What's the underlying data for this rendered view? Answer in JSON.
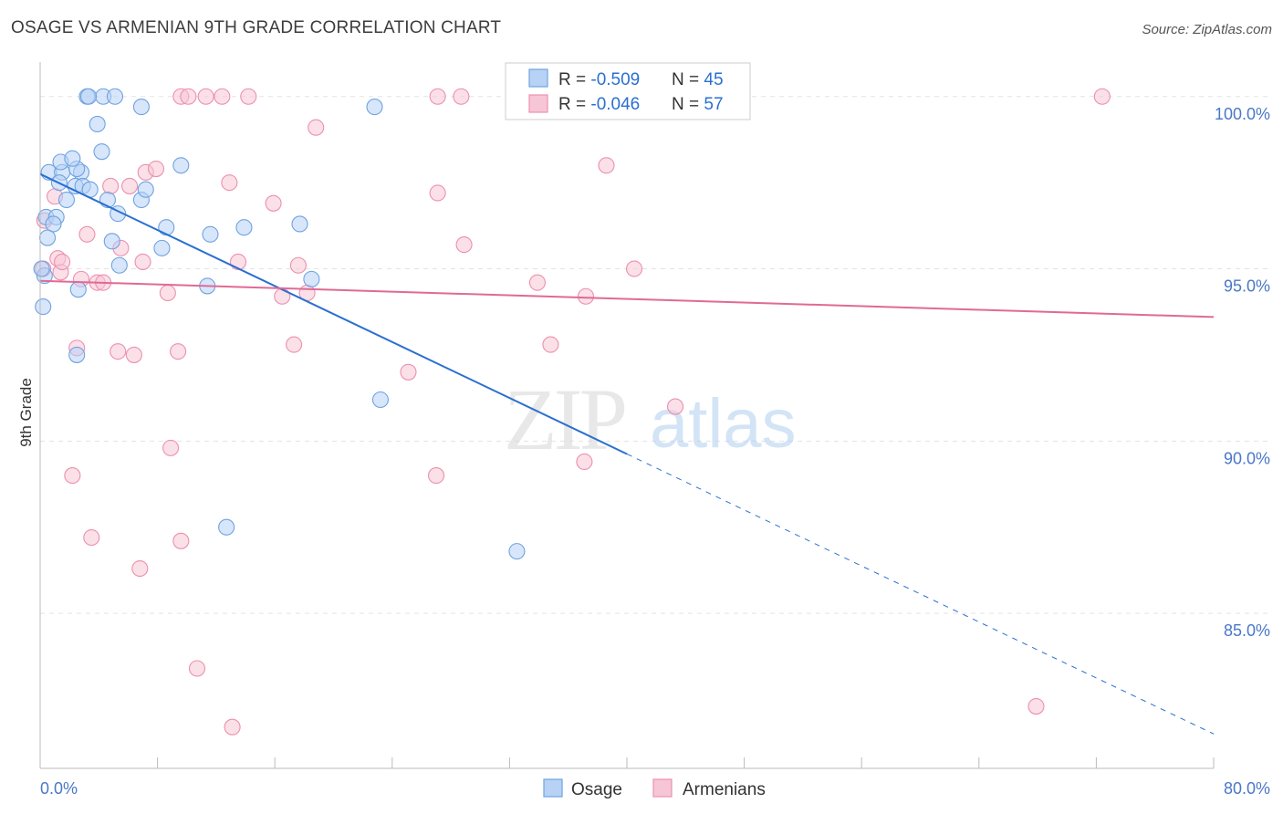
{
  "header": {
    "title": "OSAGE VS ARMENIAN 9TH GRADE CORRELATION CHART",
    "source": "Source: ZipAtlas.com"
  },
  "watermark": {
    "zip": "ZIP",
    "atlas": "atlas"
  },
  "colors": {
    "osage": "#6fa3e0",
    "osage_fill": "#b7d2f5",
    "osage_line": "#2a6fd1",
    "armenian": "#ec8fb0",
    "armenian_fill": "#f7c6d6",
    "armenian_line": "#e06a94",
    "tick_text": "#4a78c8",
    "grid": "#e3e3e3"
  },
  "stats": [
    {
      "r_label": "R = ",
      "r_value": "-0.509",
      "n_label": "N = ",
      "n_value": "45"
    },
    {
      "r_label": "R = ",
      "r_value": "-0.046",
      "n_label": "N = ",
      "n_value": "57"
    }
  ],
  "chart_data": {
    "type": "scatter",
    "title": "OSAGE VS ARMENIAN 9TH GRADE CORRELATION CHART",
    "xlabel": "",
    "ylabel": "9th Grade",
    "xlim": [
      0,
      80
    ],
    "ylim": [
      80.5,
      101
    ],
    "x_tick_labels": [
      "0.0%",
      "80.0%"
    ],
    "y_ticks": [
      100,
      95,
      90,
      85
    ],
    "y_tick_labels": [
      "100.0%",
      "95.0%",
      "90.0%",
      "85.0%"
    ],
    "x_minor_ticks": [
      0,
      8,
      16,
      24,
      32,
      40,
      48,
      56,
      64,
      72,
      80
    ],
    "grid": true,
    "legend_position": "bottom-center",
    "series": [
      {
        "name": "Osage",
        "trend": {
          "x0": 0,
          "y0": 97.75,
          "x_solid_end": 40,
          "x1": 80,
          "y1": 81.5
        },
        "points": [
          [
            0.6,
            97.8
          ],
          [
            1.5,
            97.8
          ],
          [
            2.8,
            97.8
          ],
          [
            2.5,
            97.9
          ],
          [
            1.4,
            98.1
          ],
          [
            2.2,
            98.2
          ],
          [
            1.3,
            97.5
          ],
          [
            2.4,
            97.4
          ],
          [
            2.9,
            97.4
          ],
          [
            3.4,
            97.3
          ],
          [
            4.6,
            97.0
          ],
          [
            1.8,
            97.0
          ],
          [
            6.9,
            97.0
          ],
          [
            7.2,
            97.3
          ],
          [
            0.4,
            96.5
          ],
          [
            1.1,
            96.5
          ],
          [
            0.9,
            96.3
          ],
          [
            5.3,
            96.6
          ],
          [
            8.6,
            96.2
          ],
          [
            11.6,
            96.0
          ],
          [
            13.9,
            96.2
          ],
          [
            17.7,
            96.3
          ],
          [
            0.5,
            95.9
          ],
          [
            4.9,
            95.8
          ],
          [
            8.3,
            95.6
          ],
          [
            5.4,
            95.1
          ],
          [
            18.5,
            94.7
          ],
          [
            2.6,
            94.4
          ],
          [
            11.4,
            94.5
          ],
          [
            0.2,
            93.9
          ],
          [
            2.5,
            92.5
          ],
          [
            23.2,
            91.2
          ],
          [
            12.7,
            87.5
          ],
          [
            32.5,
            86.8
          ],
          [
            3.2,
            100.0
          ],
          [
            4.3,
            100.0
          ],
          [
            5.1,
            100.0
          ],
          [
            3.3,
            100.0
          ],
          [
            6.9,
            99.7
          ],
          [
            22.8,
            99.7
          ],
          [
            3.9,
            99.2
          ],
          [
            4.2,
            98.4
          ],
          [
            9.6,
            98.0
          ],
          [
            0.3,
            94.8
          ],
          [
            0.1,
            95.0
          ]
        ]
      },
      {
        "name": "Armenians",
        "trend": {
          "x0": 0,
          "y0": 94.65,
          "x1": 80,
          "y1": 93.6
        },
        "points": [
          [
            9.6,
            100.0
          ],
          [
            10.1,
            100.0
          ],
          [
            11.3,
            100.0
          ],
          [
            12.4,
            100.0
          ],
          [
            14.2,
            100.0
          ],
          [
            27.1,
            100.0
          ],
          [
            28.7,
            100.0
          ],
          [
            32.6,
            100.0
          ],
          [
            72.4,
            100.0
          ],
          [
            18.8,
            99.1
          ],
          [
            7.2,
            97.8
          ],
          [
            7.9,
            97.9
          ],
          [
            38.6,
            98.0
          ],
          [
            4.8,
            97.4
          ],
          [
            6.1,
            97.4
          ],
          [
            12.9,
            97.5
          ],
          [
            27.1,
            97.2
          ],
          [
            1.0,
            97.1
          ],
          [
            15.9,
            96.9
          ],
          [
            3.2,
            96.0
          ],
          [
            5.5,
            95.6
          ],
          [
            28.9,
            95.7
          ],
          [
            1.2,
            95.3
          ],
          [
            7.0,
            95.2
          ],
          [
            13.5,
            95.2
          ],
          [
            17.6,
            95.1
          ],
          [
            40.5,
            95.0
          ],
          [
            1.4,
            94.9
          ],
          [
            2.8,
            94.7
          ],
          [
            3.9,
            94.6
          ],
          [
            4.3,
            94.6
          ],
          [
            33.9,
            94.6
          ],
          [
            8.7,
            94.3
          ],
          [
            16.5,
            94.2
          ],
          [
            18.2,
            94.3
          ],
          [
            37.2,
            94.2
          ],
          [
            34.8,
            92.8
          ],
          [
            17.3,
            92.8
          ],
          [
            2.5,
            92.7
          ],
          [
            5.3,
            92.6
          ],
          [
            6.4,
            92.5
          ],
          [
            9.4,
            92.6
          ],
          [
            25.1,
            92.0
          ],
          [
            43.3,
            91.0
          ],
          [
            8.9,
            89.8
          ],
          [
            2.2,
            89.0
          ],
          [
            27.0,
            89.0
          ],
          [
            37.1,
            89.4
          ],
          [
            3.5,
            87.2
          ],
          [
            9.6,
            87.1
          ],
          [
            6.8,
            86.3
          ],
          [
            10.7,
            83.4
          ],
          [
            13.1,
            81.7
          ],
          [
            67.9,
            82.3
          ],
          [
            0.3,
            96.4
          ],
          [
            0.2,
            95.0
          ],
          [
            1.5,
            95.2
          ]
        ]
      }
    ]
  }
}
